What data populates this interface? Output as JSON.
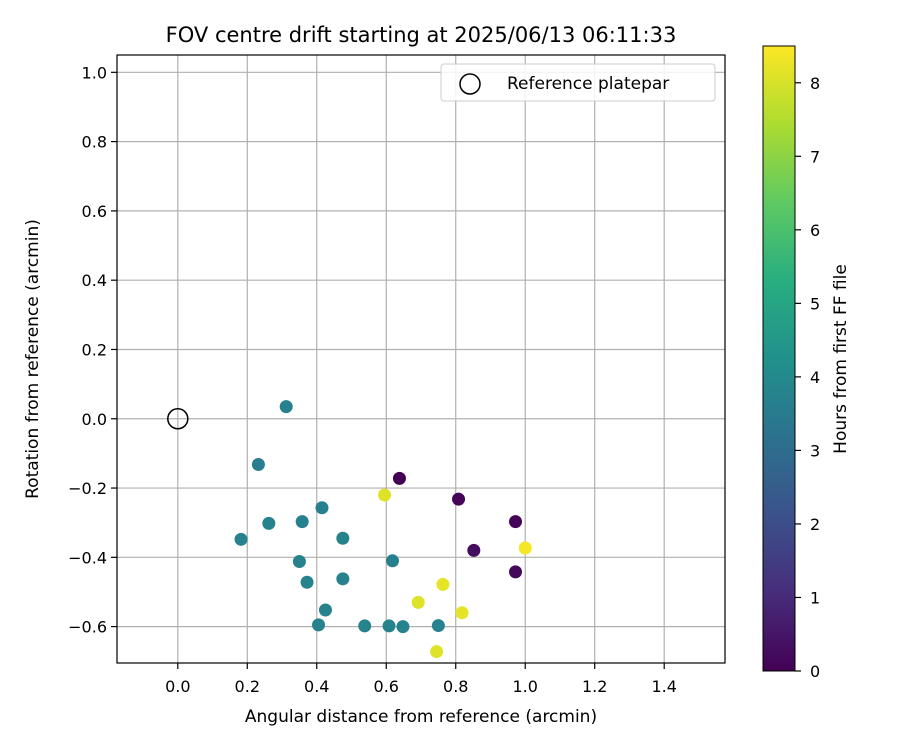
{
  "chart_data": {
    "type": "scatter",
    "title": "FOV centre drift starting at 2025/06/13 06:11:33",
    "xlabel": "Angular distance from reference (arcmin)",
    "ylabel": "Rotation from reference (arcmin)",
    "xlim": [
      -0.175,
      1.575
    ],
    "ylim": [
      -0.705,
      1.05
    ],
    "x_ticks": [
      0.0,
      0.2,
      0.4,
      0.6,
      0.8,
      1.0,
      1.2,
      1.4
    ],
    "y_ticks": [
      -0.6,
      -0.4,
      -0.2,
      0.0,
      0.2,
      0.4,
      0.6,
      0.8,
      1.0
    ],
    "grid": true,
    "legend": {
      "label": "Reference platepar",
      "location": "upper right"
    },
    "reference_point": {
      "x": 0.0,
      "y": 0.0
    },
    "colorbar": {
      "label": "Hours from first FF file",
      "range": [
        0,
        8.5
      ],
      "ticks": [
        0,
        1,
        2,
        3,
        4,
        5,
        6,
        7,
        8
      ],
      "colormap": "viridis"
    },
    "points": [
      {
        "x": 0.638,
        "y": -0.172,
        "hours": 0.0
      },
      {
        "x": 0.808,
        "y": -0.232,
        "hours": 0.1
      },
      {
        "x": 0.972,
        "y": -0.297,
        "hours": 0.1
      },
      {
        "x": 0.852,
        "y": -0.38,
        "hours": 0.3
      },
      {
        "x": 0.972,
        "y": -0.442,
        "hours": 0.2
      },
      {
        "x": 0.312,
        "y": 0.035,
        "hours": 3.7
      },
      {
        "x": 0.232,
        "y": -0.132,
        "hours": 3.6
      },
      {
        "x": 0.415,
        "y": -0.257,
        "hours": 3.7
      },
      {
        "x": 0.262,
        "y": -0.302,
        "hours": 3.8
      },
      {
        "x": 0.358,
        "y": -0.297,
        "hours": 3.7
      },
      {
        "x": 0.475,
        "y": -0.345,
        "hours": 3.8
      },
      {
        "x": 0.182,
        "y": -0.348,
        "hours": 3.8
      },
      {
        "x": 0.35,
        "y": -0.412,
        "hours": 3.8
      },
      {
        "x": 0.618,
        "y": -0.41,
        "hours": 3.7
      },
      {
        "x": 0.475,
        "y": -0.462,
        "hours": 3.8
      },
      {
        "x": 0.372,
        "y": -0.472,
        "hours": 3.8
      },
      {
        "x": 0.425,
        "y": -0.552,
        "hours": 3.8
      },
      {
        "x": 0.405,
        "y": -0.595,
        "hours": 3.8
      },
      {
        "x": 0.538,
        "y": -0.598,
        "hours": 3.8
      },
      {
        "x": 0.608,
        "y": -0.598,
        "hours": 3.8
      },
      {
        "x": 0.648,
        "y": -0.6,
        "hours": 3.8
      },
      {
        "x": 0.75,
        "y": -0.597,
        "hours": 3.8
      },
      {
        "x": 0.595,
        "y": -0.22,
        "hours": 8.1
      },
      {
        "x": 1.0,
        "y": -0.373,
        "hours": 8.4
      },
      {
        "x": 0.763,
        "y": -0.478,
        "hours": 8.2
      },
      {
        "x": 0.818,
        "y": -0.56,
        "hours": 8.2
      },
      {
        "x": 0.692,
        "y": -0.53,
        "hours": 8.1
      },
      {
        "x": 0.745,
        "y": -0.672,
        "hours": 8.1
      }
    ]
  }
}
